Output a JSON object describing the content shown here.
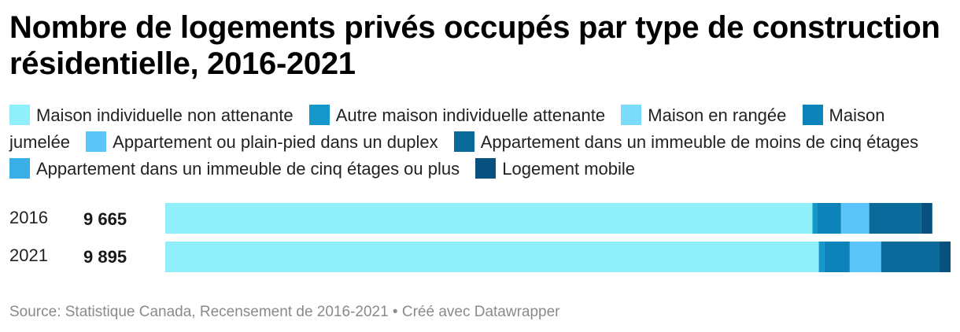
{
  "chart_data": {
    "type": "bar",
    "stacked": true,
    "orientation": "horizontal",
    "title": "Nombre de logements privés occupés par type de construction résidentielle, 2016-2021",
    "categories": [
      "2016",
      "2021"
    ],
    "totals": [
      "9 665",
      "9 895"
    ],
    "xlim": [
      0,
      9895
    ],
    "series": [
      {
        "name": "Maison individuelle non attenante",
        "color": "#8ff0fc",
        "values": [
          8155,
          8235
        ]
      },
      {
        "name": "Autre maison individuelle attenante",
        "color": "#1597c9",
        "values": [
          60,
          70
        ]
      },
      {
        "name": "Maison en rangée",
        "color": "#7adcf8",
        "values": [
          0,
          0
        ]
      },
      {
        "name": "Maison jumelée",
        "color": "#0c84ba",
        "values": [
          300,
          320
        ]
      },
      {
        "name": "Appartement ou plain-pied dans un duplex",
        "color": "#5bc4f8",
        "values": [
          355,
          395
        ]
      },
      {
        "name": "Appartement dans un immeuble de moins de cinq étages",
        "color": "#0a6a9c",
        "values": [
          655,
          730
        ]
      },
      {
        "name": "Appartement dans un immeuble de cinq étages ou plus",
        "color": "#3aaee6",
        "values": [
          0,
          0
        ]
      },
      {
        "name": "Logement mobile",
        "color": "#08507e",
        "values": [
          140,
          145
        ]
      }
    ],
    "grid": false,
    "legend_position": "top"
  },
  "source": "Source: Statistique Canada, Recensement de 2016-2021 • Créé avec Datawrapper"
}
